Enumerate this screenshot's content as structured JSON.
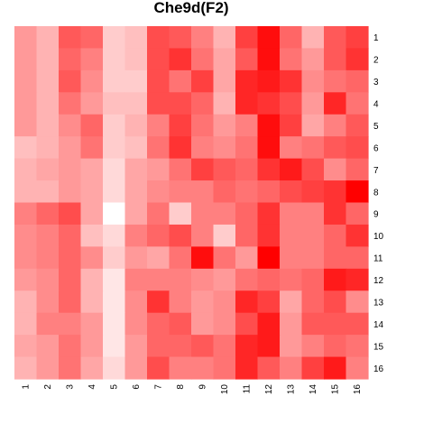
{
  "chart_data": {
    "type": "heatmap",
    "title": "Che9d(F2)",
    "xlabel": "",
    "ylabel": "",
    "x_tick_labels": [
      "1",
      "2",
      "3",
      "4",
      "5",
      "6",
      "7",
      "8",
      "9",
      "10",
      "11",
      "12",
      "13",
      "14",
      "15",
      "16"
    ],
    "y_tick_labels": [
      "1",
      "2",
      "3",
      "4",
      "5",
      "6",
      "7",
      "8",
      "9",
      "10",
      "11",
      "12",
      "13",
      "14",
      "15",
      "16"
    ],
    "y_axis_position": "right",
    "x_label_rotation": "vertical",
    "color_scale": {
      "low": "#ffffff",
      "high": "#ff0000"
    },
    "grid": false,
    "legend": "none",
    "values": [
      [
        0.4,
        0.3,
        0.65,
        0.6,
        0.2,
        0.25,
        0.7,
        0.65,
        0.5,
        0.3,
        0.75,
        0.95,
        0.6,
        0.3,
        0.65,
        0.75
      ],
      [
        0.4,
        0.3,
        0.6,
        0.5,
        0.2,
        0.25,
        0.7,
        0.8,
        0.55,
        0.35,
        0.65,
        0.95,
        0.55,
        0.4,
        0.65,
        0.8
      ],
      [
        0.4,
        0.3,
        0.65,
        0.45,
        0.2,
        0.2,
        0.7,
        0.55,
        0.75,
        0.35,
        0.85,
        0.9,
        0.8,
        0.45,
        0.55,
        0.6
      ],
      [
        0.4,
        0.3,
        0.55,
        0.4,
        0.25,
        0.25,
        0.7,
        0.7,
        0.6,
        0.3,
        0.85,
        0.8,
        0.7,
        0.4,
        0.85,
        0.55
      ],
      [
        0.4,
        0.3,
        0.45,
        0.6,
        0.2,
        0.3,
        0.5,
        0.75,
        0.55,
        0.4,
        0.5,
        0.95,
        0.75,
        0.35,
        0.5,
        0.65
      ],
      [
        0.25,
        0.3,
        0.4,
        0.55,
        0.2,
        0.25,
        0.55,
        0.8,
        0.5,
        0.45,
        0.55,
        0.95,
        0.5,
        0.55,
        0.65,
        0.7
      ],
      [
        0.3,
        0.35,
        0.4,
        0.35,
        0.15,
        0.35,
        0.4,
        0.55,
        0.75,
        0.65,
        0.6,
        0.8,
        0.9,
        0.7,
        0.45,
        0.6
      ],
      [
        0.3,
        0.3,
        0.4,
        0.35,
        0.15,
        0.35,
        0.45,
        0.5,
        0.5,
        0.6,
        0.55,
        0.6,
        0.7,
        0.75,
        0.8,
        1.0
      ],
      [
        0.5,
        0.6,
        0.7,
        0.35,
        0.0,
        0.35,
        0.55,
        0.2,
        0.5,
        0.5,
        0.6,
        0.8,
        0.5,
        0.5,
        0.8,
        0.6
      ],
      [
        0.45,
        0.5,
        0.6,
        0.25,
        0.15,
        0.5,
        0.6,
        0.7,
        0.5,
        0.2,
        0.6,
        0.8,
        0.5,
        0.5,
        0.6,
        0.8
      ],
      [
        0.45,
        0.5,
        0.6,
        0.45,
        0.2,
        0.4,
        0.35,
        0.55,
        0.95,
        0.55,
        0.4,
        1.0,
        0.5,
        0.5,
        0.6,
        0.6
      ],
      [
        0.4,
        0.45,
        0.6,
        0.3,
        0.1,
        0.5,
        0.5,
        0.5,
        0.45,
        0.4,
        0.55,
        0.6,
        0.55,
        0.6,
        0.9,
        0.85
      ],
      [
        0.3,
        0.45,
        0.6,
        0.3,
        0.1,
        0.45,
        0.8,
        0.5,
        0.4,
        0.45,
        0.85,
        0.75,
        0.35,
        0.6,
        0.7,
        0.45
      ],
      [
        0.3,
        0.5,
        0.5,
        0.4,
        0.1,
        0.45,
        0.6,
        0.65,
        0.4,
        0.45,
        0.7,
        0.9,
        0.4,
        0.65,
        0.65,
        0.65
      ],
      [
        0.35,
        0.4,
        0.55,
        0.4,
        0.1,
        0.4,
        0.6,
        0.6,
        0.65,
        0.55,
        0.85,
        0.9,
        0.4,
        0.5,
        0.6,
        0.55
      ],
      [
        0.3,
        0.4,
        0.55,
        0.35,
        0.15,
        0.4,
        0.7,
        0.5,
        0.5,
        0.55,
        0.85,
        0.65,
        0.5,
        0.75,
        0.9,
        0.5
      ]
    ]
  }
}
